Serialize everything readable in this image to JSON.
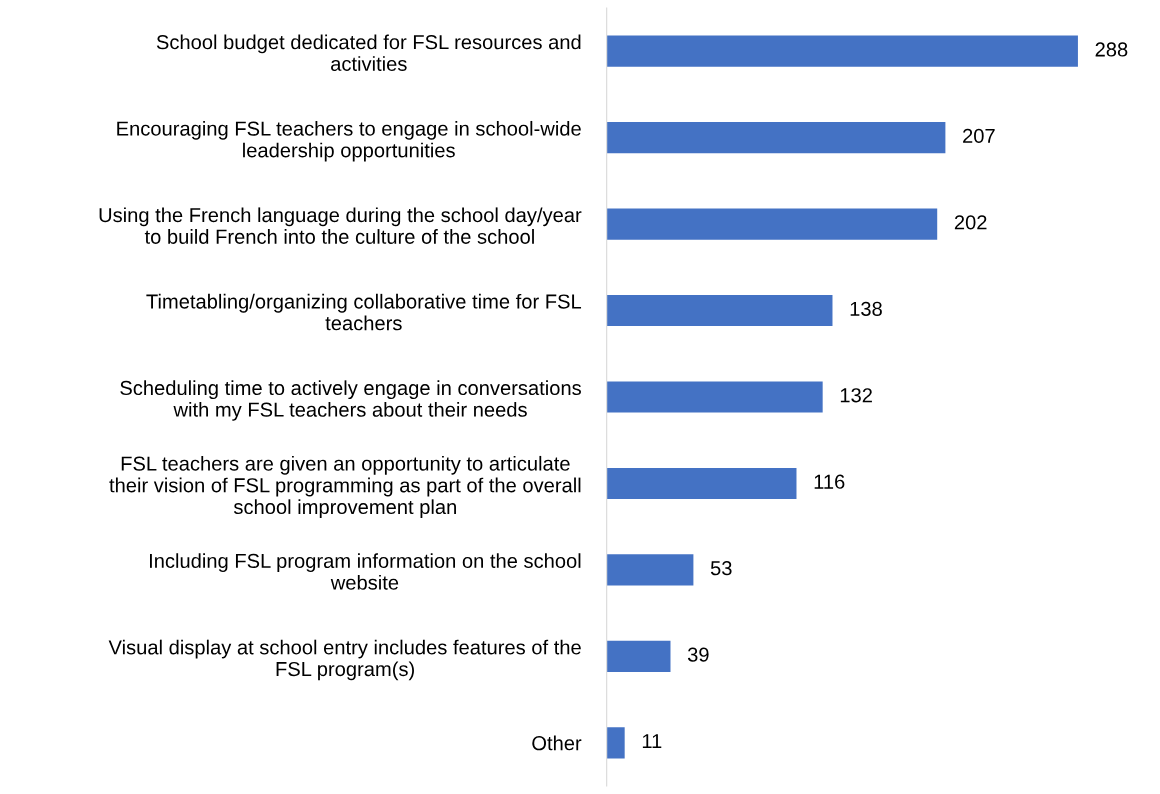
{
  "chart_data": {
    "type": "bar",
    "orientation": "horizontal",
    "categories": [
      "School budget dedicated for FSL resources and\nactivities",
      "Encouraging FSL teachers to engage in school-wide\nleadership opportunities",
      "Using the French language during the school day/year\nto build French into the culture of the school",
      "Timetabling/organizing collaborative time for FSL\nteachers",
      "Scheduling time to actively engage in conversations\nwith my FSL teachers about their needs",
      "FSL teachers are given an opportunity to articulate\ntheir vision of FSL programming as part of the overall\nschool improvement plan",
      "Including FSL program information on the school\nwebsite",
      "Visual display at school entry includes features of the\nFSL program(s)",
      "Other"
    ],
    "values": [
      288,
      207,
      202,
      138,
      132,
      116,
      53,
      39,
      11
    ],
    "color": "#4472c4",
    "data_labels": true,
    "tick_labels": "y",
    "grid": false
  }
}
